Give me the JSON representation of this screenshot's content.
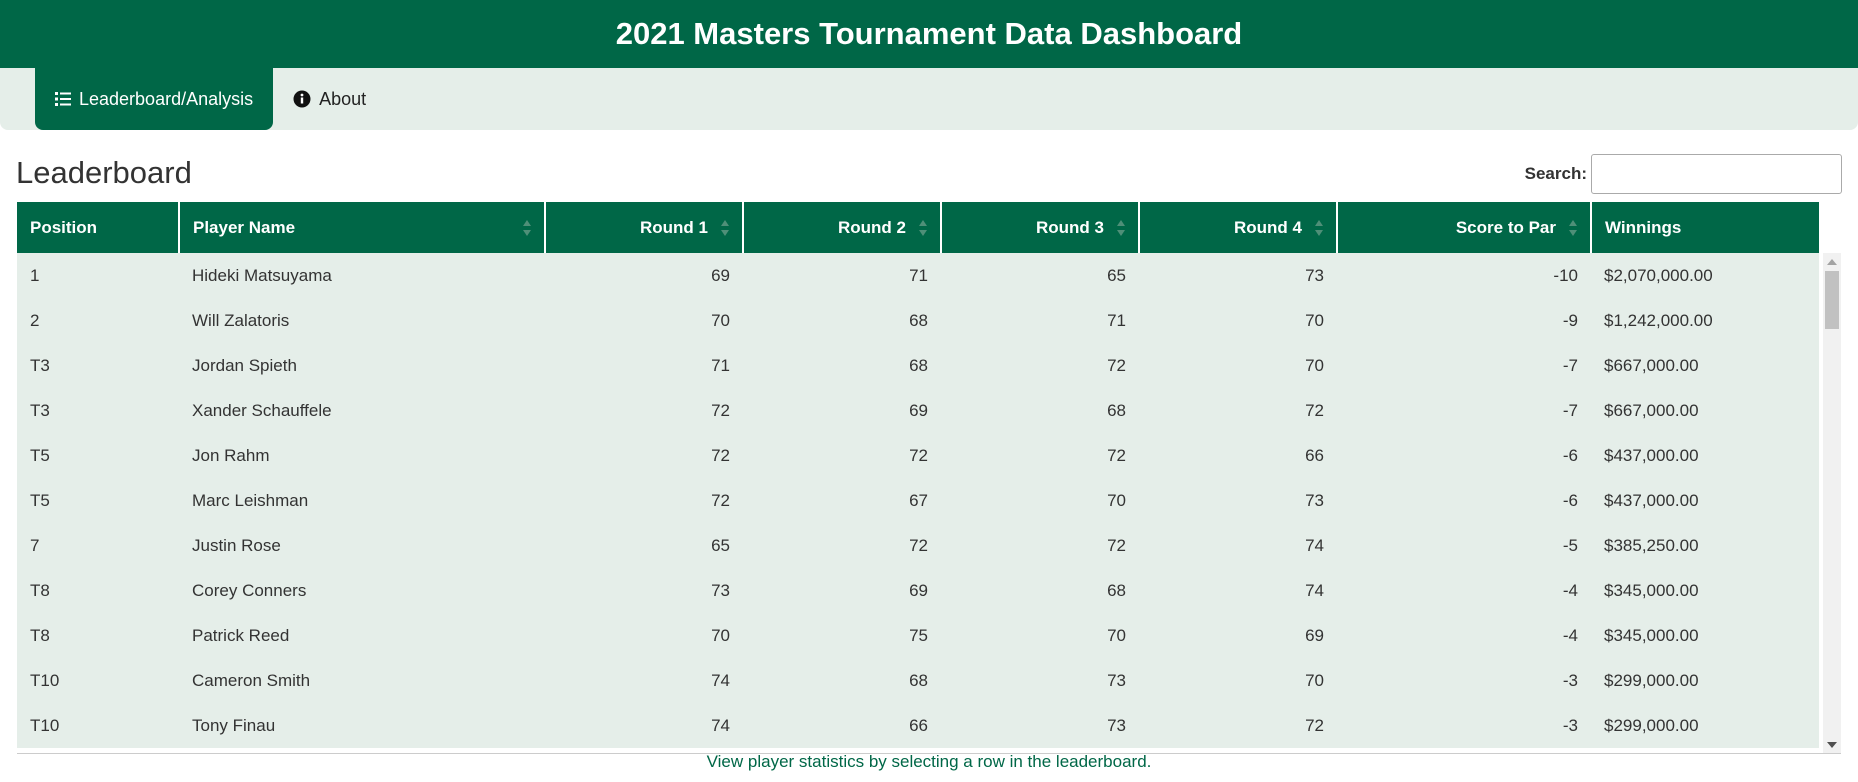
{
  "header": {
    "title": "2021 Masters Tournament Data Dashboard"
  },
  "nav": {
    "tabs": [
      {
        "label": "Leaderboard/Analysis",
        "icon": "list-ol-icon",
        "active": true
      },
      {
        "label": "About",
        "icon": "info-circle-icon",
        "active": false
      }
    ]
  },
  "leaderboard": {
    "title": "Leaderboard",
    "search_label": "Search:",
    "search_value": "",
    "columns": [
      "Position",
      "Player Name",
      "Round 1",
      "Round 2",
      "Round 3",
      "Round 4",
      "Score to Par",
      "Winnings"
    ],
    "rows": [
      [
        "1",
        "Hideki Matsuyama",
        "69",
        "71",
        "65",
        "73",
        "-10",
        "$2,070,000.00"
      ],
      [
        "2",
        "Will Zalatoris",
        "70",
        "68",
        "71",
        "70",
        "-9",
        "$1,242,000.00"
      ],
      [
        "T3",
        "Jordan Spieth",
        "71",
        "68",
        "72",
        "70",
        "-7",
        "$667,000.00"
      ],
      [
        "T3",
        "Xander Schauffele",
        "72",
        "69",
        "68",
        "72",
        "-7",
        "$667,000.00"
      ],
      [
        "T5",
        "Jon Rahm",
        "72",
        "72",
        "72",
        "66",
        "-6",
        "$437,000.00"
      ],
      [
        "T5",
        "Marc Leishman",
        "72",
        "67",
        "70",
        "73",
        "-6",
        "$437,000.00"
      ],
      [
        "7",
        "Justin Rose",
        "65",
        "72",
        "72",
        "74",
        "-5",
        "$385,250.00"
      ],
      [
        "T8",
        "Corey Conners",
        "73",
        "69",
        "68",
        "74",
        "-4",
        "$345,000.00"
      ],
      [
        "T8",
        "Patrick Reed",
        "70",
        "75",
        "70",
        "69",
        "-4",
        "$345,000.00"
      ],
      [
        "T10",
        "Cameron Smith",
        "74",
        "68",
        "73",
        "70",
        "-3",
        "$299,000.00"
      ],
      [
        "T10",
        "Tony Finau",
        "74",
        "66",
        "73",
        "72",
        "-3",
        "$299,000.00"
      ]
    ]
  },
  "caption": "View player statistics by selecting a row in the leaderboard.",
  "colors": {
    "brand_green": "#006747",
    "row_bg": "#e5eee9"
  }
}
